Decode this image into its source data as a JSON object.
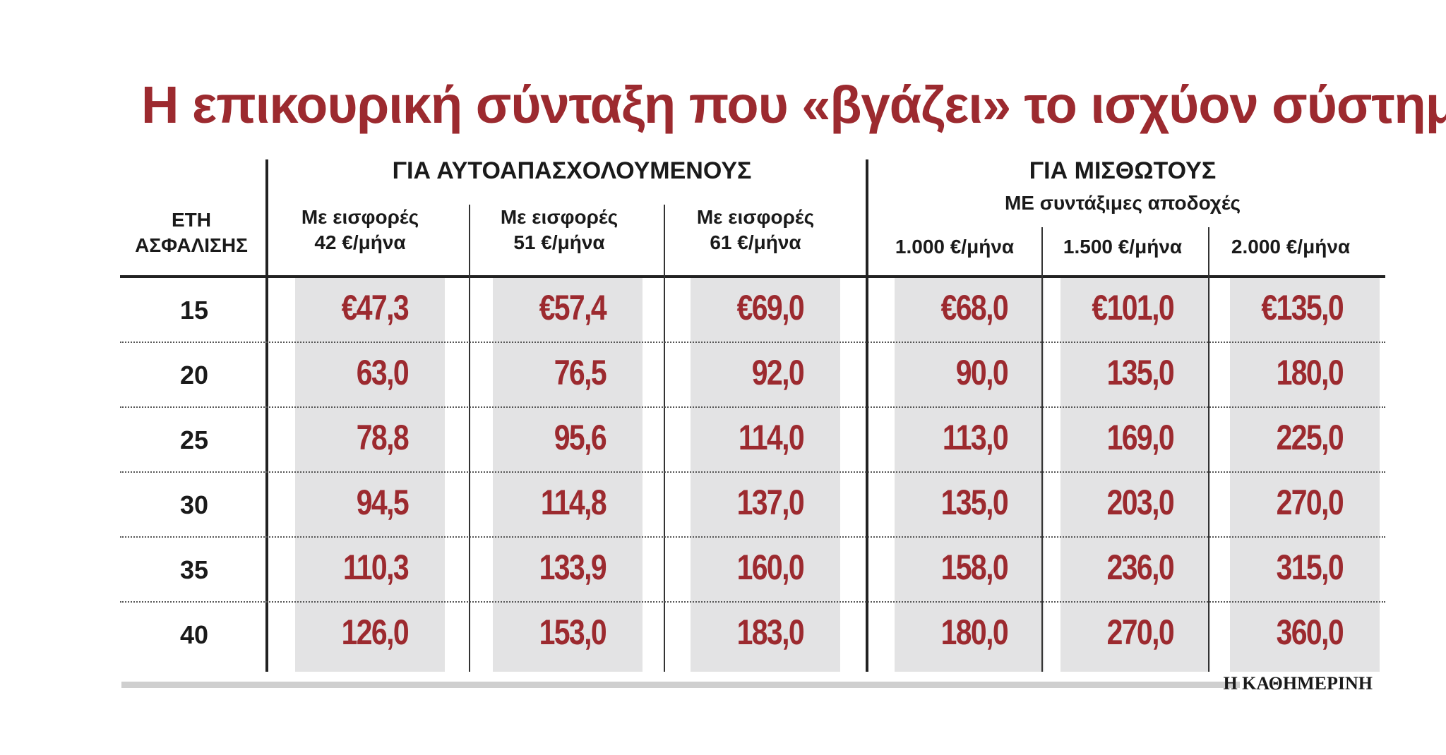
{
  "title": "Η επικουρική σύνταξη που «βγάζει» το ισχύον σύστημα",
  "source": "Η ΚΑΘΗΜΕΡΙΝΗ",
  "chart_data": {
    "type": "table",
    "title": "Η επικουρική σύνταξη που «βγάζει» το ισχύον σύστημα",
    "row_header": [
      "ΕΤΗ",
      "ΑΣΦΑΛΙΣΗΣ"
    ],
    "groups": [
      {
        "name": "ΓΙΑ ΑΥΤΟΑΠΑΣΧΟΛΟΥΜΕΝΟΥΣ",
        "subtitle": "",
        "columns": [
          [
            "Με εισφορές",
            "42 €/μήνα"
          ],
          [
            "Με εισφορές",
            "51 €/μήνα"
          ],
          [
            "Με εισφορές",
            "61 €/μήνα"
          ]
        ]
      },
      {
        "name": "ΓΙΑ ΜΙΣΘΩΤΟΥΣ",
        "subtitle": "ΜΕ συντάξιμες αποδοχές",
        "columns": [
          [
            "1.000 €/μήνα"
          ],
          [
            "1.500 €/μήνα"
          ],
          [
            "2.000 €/μήνα"
          ]
        ]
      }
    ],
    "currency_symbol": "€",
    "rows": [
      {
        "years": "15",
        "values": [
          "47,3",
          "57,4",
          "69,0",
          "68,0",
          "101,0",
          "135,0"
        ]
      },
      {
        "years": "20",
        "values": [
          "63,0",
          "76,5",
          "92,0",
          "90,0",
          "135,0",
          "180,0"
        ]
      },
      {
        "years": "25",
        "values": [
          "78,8",
          "95,6",
          "114,0",
          "113,0",
          "169,0",
          "225,0"
        ]
      },
      {
        "years": "30",
        "values": [
          "94,5",
          "114,8",
          "137,0",
          "135,0",
          "203,0",
          "270,0"
        ]
      },
      {
        "years": "35",
        "values": [
          "110,3",
          "133,9",
          "160,0",
          "158,0",
          "236,0",
          "315,0"
        ]
      },
      {
        "years": "40",
        "values": [
          "126,0",
          "153,0",
          "183,0",
          "180,0",
          "270,0",
          "360,0"
        ]
      }
    ]
  }
}
